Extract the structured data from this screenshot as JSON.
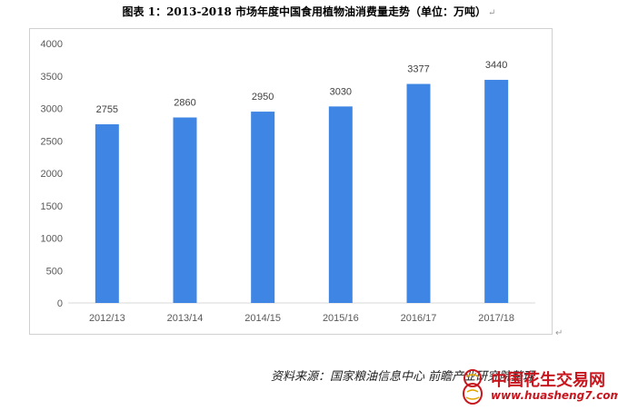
{
  "figure": {
    "caption": "图表 1：2013-2018 市场年度中国食用植物油消费量走势（单位：万吨）",
    "paragraph_mark": "↵"
  },
  "chart_data": {
    "type": "bar",
    "title": "",
    "xlabel": "",
    "ylabel": "",
    "categories": [
      "2012/13",
      "2013/14",
      "2014/15",
      "2015/16",
      "2016/17",
      "2017/18"
    ],
    "values": [
      2755,
      2860,
      2950,
      3030,
      3377,
      3440
    ],
    "data_labels": [
      "2755",
      "2860",
      "2950",
      "3030",
      "3377",
      "3440"
    ],
    "ylim": [
      0,
      4000
    ],
    "yticks": [
      0,
      500,
      1000,
      1500,
      2000,
      2500,
      3000,
      3500,
      4000
    ],
    "ytick_labels": [
      "0",
      "500",
      "1000",
      "1500",
      "2000",
      "2500",
      "3000",
      "3500",
      "4000"
    ],
    "grid": false,
    "legend": "none",
    "bar_color": "#3f86e4"
  },
  "source": {
    "text": "资料来源：国家粮油信息中心 前瞻产业研究院整理"
  },
  "watermark": {
    "title": "中国花生交易网",
    "url": "www.huasheng7.com",
    "color": "#c8161e"
  }
}
